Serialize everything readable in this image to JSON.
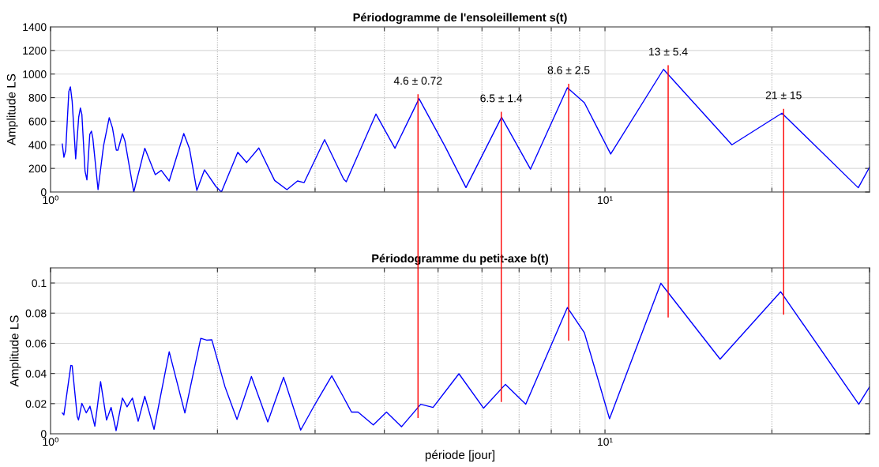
{
  "chart_data": [
    {
      "type": "line",
      "title": "Périodogramme de l'ensoleillement s(t)",
      "ylabel": "Amplitude LS",
      "log": "x",
      "grid": true,
      "xlim": [
        1,
        30
      ],
      "ylim": [
        0,
        1400
      ],
      "xticks": [
        {
          "value": 1,
          "label": "10⁰"
        },
        {
          "value": 2,
          "label": null
        },
        {
          "value": 3,
          "label": null
        },
        {
          "value": 4,
          "label": null
        },
        {
          "value": 5,
          "label": null
        },
        {
          "value": 6,
          "label": null
        },
        {
          "value": 7,
          "label": null
        },
        {
          "value": 8,
          "label": null
        },
        {
          "value": 9,
          "label": null
        },
        {
          "value": 10,
          "label": "10¹"
        },
        {
          "value": 20,
          "label": null
        },
        {
          "value": 30,
          "label": null
        }
      ],
      "yticks": [
        0,
        200,
        400,
        600,
        800,
        1000,
        1200,
        1400
      ],
      "series": [
        {
          "color": "#0000ff",
          "x": [
            1.05,
            1.057,
            1.065,
            1.079,
            1.086,
            1.094,
            1.11,
            1.124,
            1.132,
            1.139,
            1.154,
            1.163,
            1.177,
            1.185,
            1.192,
            1.218,
            1.246,
            1.276,
            1.293,
            1.314,
            1.323,
            1.348,
            1.362,
            1.413,
            1.479,
            1.545,
            1.584,
            1.637,
            1.739,
            1.781,
            1.836,
            1.895,
            1.987,
            2.033,
            2.176,
            2.258,
            2.375,
            2.536,
            2.669,
            2.789,
            2.867,
            3.121,
            3.378,
            3.415,
            3.863,
            4.18,
            4.62,
            5.143,
            5.614,
            6.508,
            7.34,
            8.554,
            9.18,
            10.24,
            12.75,
            16.94,
            20.85,
            28.63,
            30.0
          ],
          "values": [
            407,
            295,
            355,
            853,
            891,
            768,
            281,
            634,
            712,
            657,
            176,
            103,
            489,
            516,
            456,
            20,
            389,
            630,
            545,
            355,
            355,
            494,
            433,
            0,
            371,
            147,
            183,
            94,
            496,
            366,
            13,
            188,
            47,
            0,
            337,
            250,
            373,
            98,
            20,
            94,
            80,
            444,
            109,
            87,
            661,
            371,
            791,
            389,
            38,
            634,
            194,
            884,
            757,
            322,
            1040,
            400,
            668,
            36,
            210
          ]
        },
        {
          "color": "#ff0000",
          "x": [
            4.6,
            4.6
          ],
          "values": [
            0,
            824
          ]
        },
        {
          "color": "#ff0000",
          "x": [
            6.5,
            6.5
          ],
          "values": [
            0,
            675
          ]
        },
        {
          "color": "#ff0000",
          "x": [
            8.6,
            8.6
          ],
          "values": [
            0,
            913
          ]
        },
        {
          "color": "#ff0000",
          "x": [
            13,
            13
          ],
          "values": [
            0,
            1070
          ]
        },
        {
          "color": "#ff0000",
          "x": [
            21,
            21
          ],
          "values": [
            0,
            701
          ]
        }
      ],
      "annotations": [
        {
          "text": "4.6 ± 0.72",
          "x": 4.6,
          "y": 824
        },
        {
          "text": "6.5 ± 1.4",
          "x": 6.5,
          "y": 675
        },
        {
          "text": "8.6 ± 2.5",
          "x": 8.6,
          "y": 913
        },
        {
          "text": "13 ± 5.4",
          "x": 13,
          "y": 1070
        },
        {
          "text": "21 ± 15",
          "x": 21,
          "y": 701
        }
      ]
    },
    {
      "type": "line",
      "title": "Périodogramme du petit-axe b(t)",
      "ylabel": "Amplitude LS",
      "xlabel": "période [jour]",
      "log": "x",
      "grid": true,
      "xlim": [
        1,
        30
      ],
      "ylim": [
        0,
        0.11
      ],
      "xticks": [
        {
          "value": 1,
          "label": "10⁰"
        },
        {
          "value": 2,
          "label": null
        },
        {
          "value": 3,
          "label": null
        },
        {
          "value": 4,
          "label": null
        },
        {
          "value": 5,
          "label": null
        },
        {
          "value": 6,
          "label": null
        },
        {
          "value": 7,
          "label": null
        },
        {
          "value": 8,
          "label": null
        },
        {
          "value": 9,
          "label": null
        },
        {
          "value": 10,
          "label": "10¹"
        },
        {
          "value": 20,
          "label": null
        },
        {
          "value": 30,
          "label": null
        }
      ],
      "yticks": [
        0,
        0.02,
        0.04,
        0.06,
        0.08,
        0.1
      ],
      "series": [
        {
          "color": "#0000ff",
          "x": [
            1.05,
            1.057,
            1.088,
            1.094,
            1.117,
            1.123,
            1.139,
            1.16,
            1.178,
            1.202,
            1.231,
            1.262,
            1.286,
            1.313,
            1.348,
            1.374,
            1.405,
            1.439,
            1.479,
            1.537,
            1.637,
            1.747,
            1.866,
            1.912,
            1.954,
            2.064,
            2.169,
            2.303,
            2.465,
            2.632,
            2.826,
            2.994,
            3.215,
            3.378,
            3.49,
            3.586,
            3.821,
            4.036,
            4.295,
            4.653,
            4.897,
            5.452,
            6.04,
            6.614,
            7.196,
            8.554,
            9.18,
            10.19,
            12.61,
            16.13,
            20.74,
            28.69,
            30.0
          ],
          "values": [
            0.0138,
            0.0126,
            0.0454,
            0.0451,
            0.0117,
            0.0091,
            0.0202,
            0.0139,
            0.0183,
            0.0051,
            0.0346,
            0.0091,
            0.0175,
            0.0021,
            0.0237,
            0.0179,
            0.0237,
            0.0083,
            0.0249,
            0.003,
            0.0544,
            0.0138,
            0.0633,
            0.0621,
            0.0623,
            0.0311,
            0.0095,
            0.038,
            0.0079,
            0.0375,
            0.0025,
            0.0191,
            0.0384,
            0.0241,
            0.0144,
            0.0144,
            0.0059,
            0.0144,
            0.0047,
            0.0196,
            0.0175,
            0.0398,
            0.017,
            0.0328,
            0.0196,
            0.0837,
            0.067,
            0.01,
            0.0998,
            0.0495,
            0.0942,
            0.0196,
            0.0311
          ]
        },
        {
          "color": "#ff0000",
          "x": [
            4.6,
            4.6
          ],
          "values": [
            0.0109,
            0.11
          ]
        },
        {
          "color": "#ff0000",
          "x": [
            6.5,
            6.5
          ],
          "values": [
            0.0214,
            0.11
          ]
        },
        {
          "color": "#ff0000",
          "x": [
            8.6,
            8.6
          ],
          "values": [
            0.0621,
            0.11
          ]
        },
        {
          "color": "#ff0000",
          "x": [
            13,
            13
          ],
          "values": [
            0.0775,
            0.11
          ]
        },
        {
          "color": "#ff0000",
          "x": [
            21,
            21
          ],
          "values": [
            0.0793,
            0.11
          ]
        }
      ]
    }
  ]
}
